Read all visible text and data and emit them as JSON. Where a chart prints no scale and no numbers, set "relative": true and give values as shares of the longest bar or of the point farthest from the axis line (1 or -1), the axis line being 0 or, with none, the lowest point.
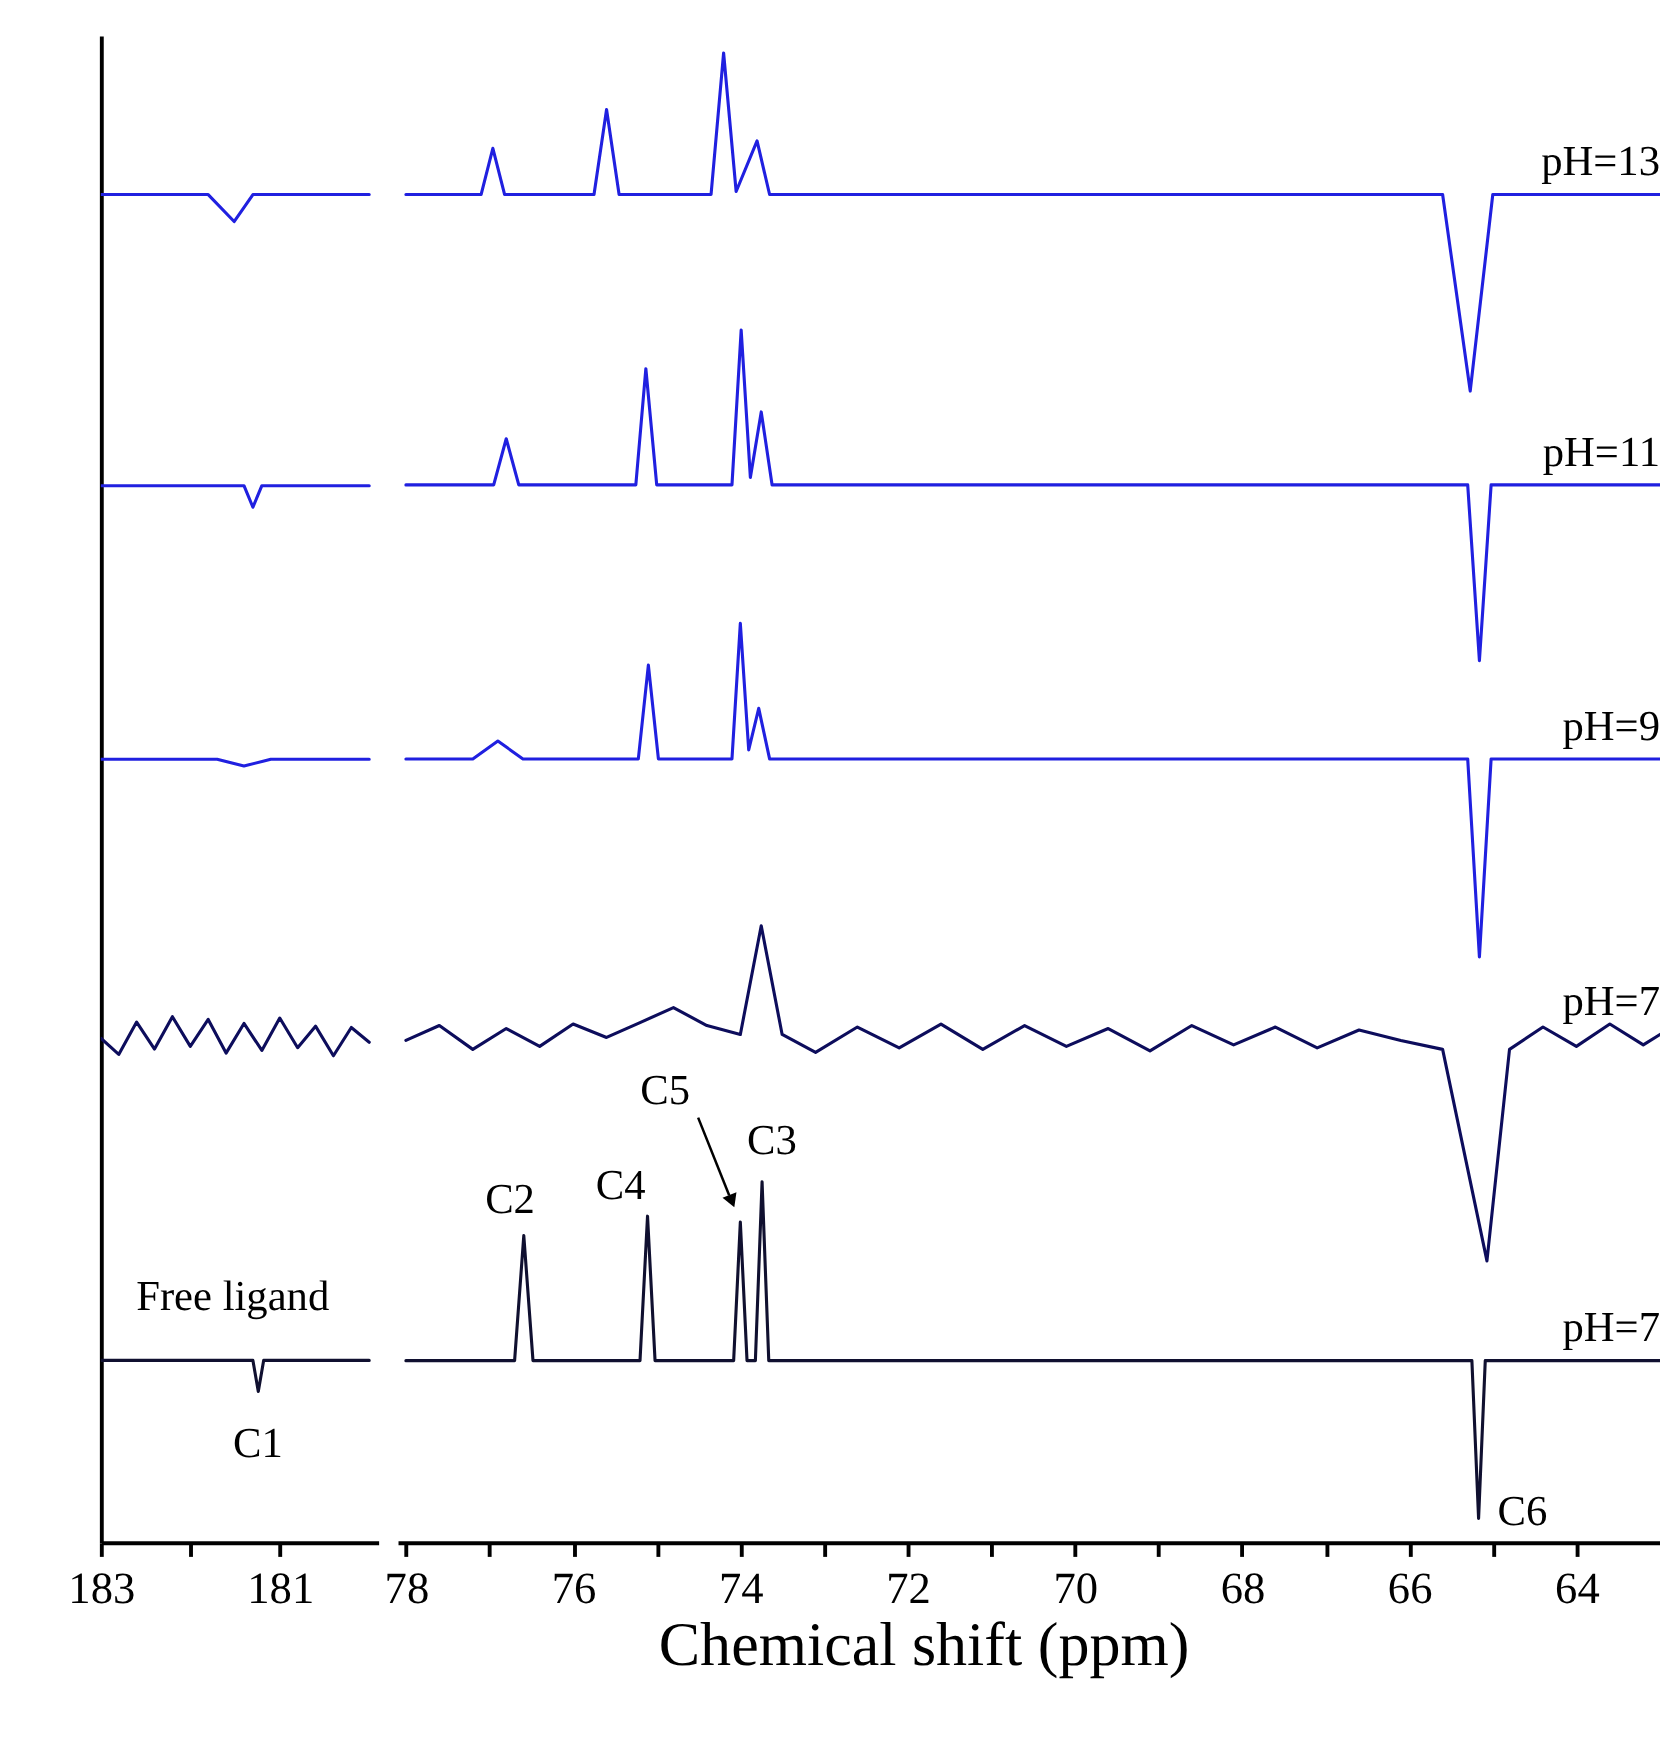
{
  "chart_data": [
    {
      "type": "line",
      "relative": true,
      "legend": false,
      "grid": false,
      "marker": "none",
      "line_style": "solid",
      "xlim": [
        183,
        179.9
      ],
      "xticks": [
        183,
        {
          "value": 182,
          "label": null
        },
        181
      ],
      "series": [
        {
          "color": "#2020e0",
          "x": [
            183,
            181.8,
            181.51,
            181.3,
            180
          ],
          "values": [
            1.0,
            1.0,
            0.98,
            1.0,
            1.0
          ]
        },
        {
          "color": "#2020e0",
          "x": [
            183,
            181.4,
            181.3,
            181.2,
            180
          ],
          "values": [
            0.784,
            0.784,
            0.768,
            0.784,
            0.784
          ]
        },
        {
          "color": "#2020e0",
          "x": [
            183,
            181.7,
            181.4,
            181.1,
            180
          ],
          "values": [
            0.581,
            0.581,
            0.576,
            0.581,
            0.581
          ]
        },
        {
          "color": "#0d0d5c",
          "x": [
            183,
            182.8,
            182.6,
            182.4,
            182.2,
            182.0,
            181.8,
            181.6,
            181.4,
            181.2,
            181.0,
            180.8,
            180.6,
            180.4,
            180.2,
            180
          ],
          "values": [
            0.374,
            0.362,
            0.386,
            0.366,
            0.39,
            0.368,
            0.388,
            0.363,
            0.385,
            0.365,
            0.389,
            0.367,
            0.383,
            0.361,
            0.382,
            0.371
          ]
        },
        {
          "color": "#101030",
          "x": [
            183,
            181.3,
            181.24,
            181.18,
            180
          ],
          "values": [
            0.135,
            0.135,
            0.112,
            0.135,
            0.135
          ]
        }
      ],
      "annotations": [
        "Free ligand",
        "C1"
      ]
    },
    {
      "type": "line",
      "relative": true,
      "legend": false,
      "grid": false,
      "marker": "none",
      "line_style": "solid",
      "xlim": [
        78.1,
        63
      ],
      "xlabel": "Chemical shift (ppm)",
      "xticks": [
        78,
        {
          "value": 77,
          "label": null
        },
        76,
        {
          "value": 75,
          "label": null
        },
        74,
        {
          "value": 73,
          "label": null
        },
        72,
        {
          "value": 71,
          "label": null
        },
        70,
        {
          "value": 69,
          "label": null
        },
        68,
        {
          "value": 67,
          "label": null
        },
        66,
        {
          "value": 65,
          "label": null
        },
        64
      ],
      "series": [
        {
          "name": "pH=13",
          "color": "#2020e0",
          "x": [
            78,
            77.1,
            76.96,
            76.82,
            75.75,
            75.6,
            75.45,
            74.35,
            74.2,
            74.05,
            73.8,
            73.65,
            65.6,
            65.27,
            65.0,
            63
          ],
          "values": [
            0.905,
            0.905,
            0.936,
            0.905,
            0.905,
            0.962,
            0.905,
            0.905,
            1.0,
            0.907,
            0.941,
            0.905,
            0.905,
            0.773,
            0.905,
            0.905
          ]
        },
        {
          "name": "pH=11",
          "color": "#2020e0",
          "x": [
            78,
            76.95,
            76.8,
            76.65,
            75.25,
            75.13,
            75.0,
            74.1,
            73.99,
            73.88,
            73.75,
            73.62,
            65.3,
            65.16,
            65.02,
            63
          ],
          "values": [
            0.71,
            0.71,
            0.741,
            0.71,
            0.71,
            0.788,
            0.71,
            0.71,
            0.814,
            0.715,
            0.759,
            0.71,
            0.71,
            0.592,
            0.71,
            0.71
          ]
        },
        {
          "name": "pH=9",
          "color": "#2020e0",
          "x": [
            78,
            77.2,
            76.9,
            76.6,
            75.22,
            75.1,
            74.98,
            74.1,
            74.0,
            73.9,
            73.78,
            73.65,
            65.3,
            65.16,
            65.02,
            63
          ],
          "values": [
            0.526,
            0.526,
            0.538,
            0.526,
            0.526,
            0.589,
            0.526,
            0.526,
            0.617,
            0.532,
            0.56,
            0.526,
            0.526,
            0.393,
            0.526,
            0.526
          ]
        },
        {
          "name": "pH=7",
          "color": "#0d0d5c",
          "x": [
            78,
            77.6,
            77.2,
            76.8,
            76.4,
            76.0,
            75.6,
            75.2,
            74.8,
            74.4,
            74.0,
            73.75,
            73.5,
            73.1,
            72.6,
            72.1,
            71.6,
            71.1,
            70.6,
            70.1,
            69.6,
            69.1,
            68.6,
            68.1,
            67.6,
            67.1,
            66.6,
            66.1,
            65.6,
            65.07,
            64.8,
            64.4,
            64.0,
            63.6,
            63.2,
            63
          ],
          "values": [
            0.337,
            0.347,
            0.331,
            0.345,
            0.333,
            0.348,
            0.339,
            0.349,
            0.359,
            0.347,
            0.341,
            0.414,
            0.341,
            0.329,
            0.346,
            0.332,
            0.348,
            0.331,
            0.347,
            0.333,
            0.345,
            0.33,
            0.347,
            0.334,
            0.346,
            0.332,
            0.344,
            0.337,
            0.331,
            0.189,
            0.331,
            0.346,
            0.333,
            0.348,
            0.334,
            0.341
          ]
        },
        {
          "name": "pH=7",
          "color": "#101030",
          "x": [
            78,
            76.7,
            76.59,
            76.48,
            75.2,
            75.11,
            75.02,
            74.08,
            74.0,
            73.92,
            73.82,
            73.74,
            73.66,
            65.25,
            65.17,
            65.09,
            63
          ],
          "values": [
            0.122,
            0.122,
            0.206,
            0.122,
            0.122,
            0.219,
            0.122,
            0.122,
            0.215,
            0.122,
            0.122,
            0.242,
            0.122,
            0.122,
            0.016,
            0.122,
            0.122
          ]
        }
      ],
      "annotations": [
        "C2",
        "C4",
        "C5",
        "C3",
        "C6"
      ]
    }
  ]
}
